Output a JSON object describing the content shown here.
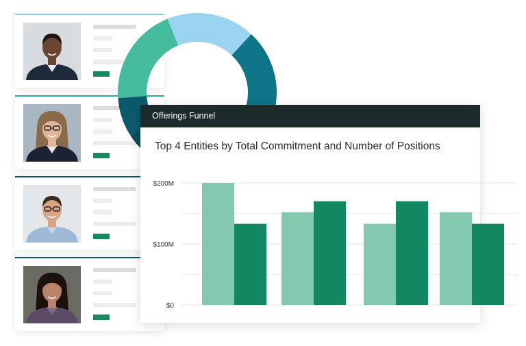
{
  "colors": {
    "header_bg": "#1d2a2a",
    "series_light": "#82c9b0",
    "series_dark": "#138761",
    "accent_tag": "#178a63",
    "card_line_blue": "#8dcfea",
    "card_line_teal": "#2bb0a0",
    "card_line_dark": "#0d5668"
  },
  "profiles": [
    {
      "photo": "portrait-man-smiling",
      "line": "#8dcfea"
    },
    {
      "photo": "portrait-woman-glasses",
      "line": "#2bb0a0"
    },
    {
      "photo": "portrait-man-glasses",
      "line": "#0d5668"
    },
    {
      "photo": "portrait-woman-dark-hair",
      "line": "#0d5668"
    }
  ],
  "donut": {
    "segments": [
      {
        "color": "#9ad4f0",
        "value": 18
      },
      {
        "color": "#0e7487",
        "value": 22
      },
      {
        "color": "#0a4f62",
        "value": 20
      },
      {
        "color": "#0c4b5c",
        "value": 12
      },
      {
        "color": "#0b5a6c",
        "value": 8
      },
      {
        "color": "#46bc9f",
        "value": 20
      }
    ]
  },
  "panel": {
    "header": "Offerings Funnel",
    "title": "Top 4 Entities by Total Commitment and Number of Positions"
  },
  "chart_data": {
    "type": "bar",
    "title": "Top 4 Entities by Total Commitment and Number of Positions",
    "categories": [
      "",
      "",
      "",
      ""
    ],
    "y_ticks": [
      "$0",
      "$100M",
      "$200M"
    ],
    "ylim": [
      0,
      200
    ],
    "grid": true,
    "series": [
      {
        "color": "#82c9b0",
        "values": [
          200,
          152,
          133,
          152
        ]
      },
      {
        "color": "#138761",
        "values": [
          133,
          170,
          170,
          133
        ]
      }
    ]
  }
}
